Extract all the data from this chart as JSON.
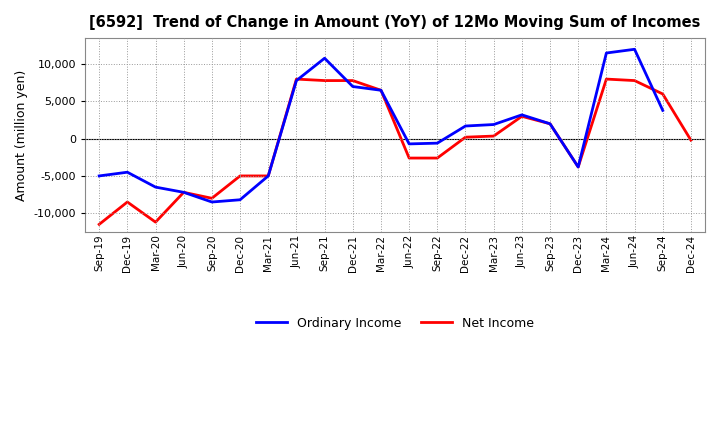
{
  "title": "[6592]  Trend of Change in Amount (YoY) of 12Mo Moving Sum of Incomes",
  "ylabel": "Amount (million yen)",
  "x_labels": [
    "Sep-19",
    "Dec-19",
    "Mar-20",
    "Jun-20",
    "Sep-20",
    "Dec-20",
    "Mar-21",
    "Jun-21",
    "Sep-21",
    "Dec-21",
    "Mar-22",
    "Jun-22",
    "Sep-22",
    "Dec-22",
    "Mar-23",
    "Jun-23",
    "Sep-23",
    "Dec-23",
    "Mar-24",
    "Jun-24",
    "Sep-24",
    "Dec-24"
  ],
  "ordinary_income": [
    -5000,
    -4500,
    -6500,
    -7200,
    -8500,
    -8200,
    -5000,
    7800,
    10800,
    7000,
    6500,
    -700,
    -600,
    1700,
    1900,
    3200,
    2000,
    -3800,
    11500,
    12000,
    3800,
    null
  ],
  "net_income": [
    -11500,
    -8500,
    -11200,
    -7200,
    -8000,
    -5000,
    -5000,
    8000,
    7800,
    7800,
    6500,
    -2600,
    -2600,
    200,
    350,
    3000,
    2000,
    -3800,
    8000,
    7800,
    6000,
    -200
  ],
  "ordinary_income_color": "#0000FF",
  "net_income_color": "#FF0000",
  "ylim": [
    -12500,
    13500
  ],
  "yticks": [
    -10000,
    -5000,
    0,
    5000,
    10000
  ],
  "legend_labels": [
    "Ordinary Income",
    "Net Income"
  ],
  "bg_color": "#FFFFFF",
  "grid_color": "#AAAAAA",
  "line_width": 2.0
}
